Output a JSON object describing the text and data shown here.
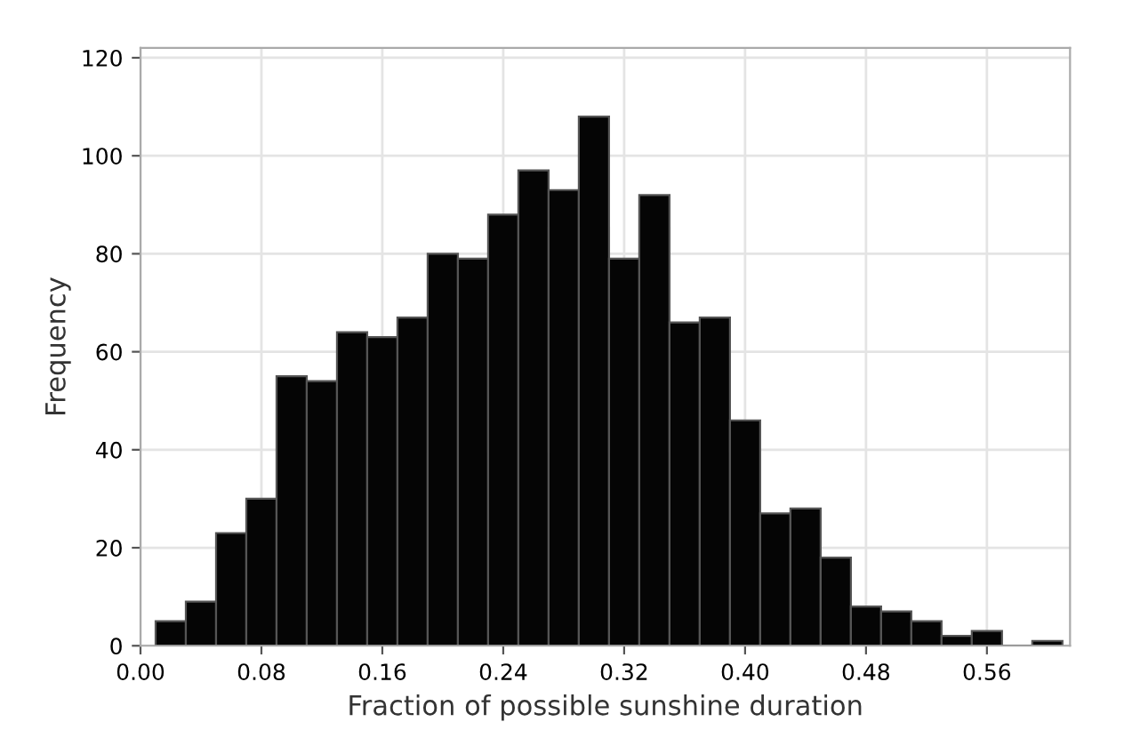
{
  "chart_data": {
    "type": "histogram",
    "xlabel": "Fraction of possible sunshine duration",
    "ylabel": "Frequency",
    "bins": [
      0.01,
      0.03,
      0.05,
      0.07,
      0.09,
      0.11,
      0.13,
      0.15,
      0.17,
      0.19,
      0.21,
      0.23,
      0.25,
      0.27,
      0.29,
      0.31,
      0.33,
      0.35,
      0.37,
      0.39,
      0.41,
      0.43,
      0.45,
      0.47,
      0.49,
      0.51,
      0.53,
      0.55,
      0.57,
      0.59,
      0.61
    ],
    "values": [
      5,
      9,
      23,
      30,
      55,
      54,
      64,
      63,
      67,
      80,
      79,
      88,
      97,
      93,
      108,
      79,
      92,
      66,
      67,
      46,
      27,
      28,
      18,
      8,
      7,
      5,
      2,
      3,
      0,
      1
    ],
    "color": "#050505",
    "xlim": [
      0,
      0.615
    ],
    "xticks": [
      {
        "value": 0,
        "label": "0.00"
      },
      0.08,
      0.16,
      0.24,
      0.32,
      {
        "value": 0.4,
        "label": "0.40"
      },
      0.48,
      0.56
    ],
    "ylim": [
      0,
      122
    ],
    "yticks": [
      0,
      20,
      40,
      60,
      80,
      100,
      120
    ],
    "grid": true
  }
}
